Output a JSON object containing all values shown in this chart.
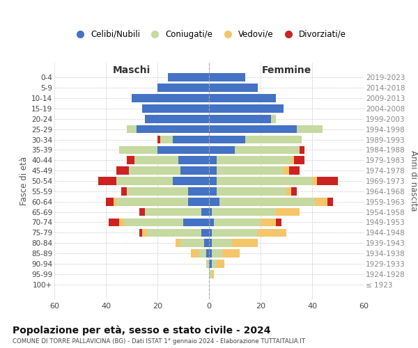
{
  "age_groups": [
    "100+",
    "95-99",
    "90-94",
    "85-89",
    "80-84",
    "75-79",
    "70-74",
    "65-69",
    "60-64",
    "55-59",
    "50-54",
    "45-49",
    "40-44",
    "35-39",
    "30-34",
    "25-29",
    "20-24",
    "15-19",
    "10-14",
    "5-9",
    "0-4"
  ],
  "birth_years": [
    "≤ 1923",
    "1924-1928",
    "1929-1933",
    "1934-1938",
    "1939-1943",
    "1944-1948",
    "1949-1953",
    "1954-1958",
    "1959-1963",
    "1964-1968",
    "1969-1973",
    "1974-1978",
    "1979-1983",
    "1984-1988",
    "1989-1993",
    "1994-1998",
    "1999-2003",
    "2004-2008",
    "2009-2013",
    "2014-2018",
    "2019-2023"
  ],
  "colors": {
    "celibe": "#4472c4",
    "coniugato": "#c5d9a0",
    "vedovo": "#f5c56a",
    "divorziato": "#cc2222"
  },
  "maschi": {
    "celibe": [
      0,
      0,
      0,
      1,
      2,
      3,
      10,
      3,
      8,
      8,
      14,
      11,
      12,
      20,
      14,
      28,
      25,
      26,
      30,
      20,
      16
    ],
    "coniugato": [
      0,
      0,
      1,
      3,
      9,
      21,
      23,
      22,
      28,
      24,
      22,
      20,
      17,
      15,
      5,
      4,
      0,
      0,
      0,
      0,
      0
    ],
    "vedovo": [
      0,
      0,
      0,
      3,
      2,
      2,
      2,
      0,
      1,
      0,
      0,
      0,
      0,
      0,
      0,
      0,
      0,
      0,
      0,
      0,
      0
    ],
    "divorziato": [
      0,
      0,
      0,
      0,
      0,
      1,
      4,
      2,
      3,
      2,
      7,
      5,
      3,
      0,
      1,
      0,
      0,
      0,
      0,
      0,
      0
    ]
  },
  "femmine": {
    "nubile": [
      0,
      0,
      1,
      1,
      1,
      1,
      2,
      1,
      4,
      3,
      3,
      3,
      3,
      10,
      14,
      34,
      24,
      29,
      26,
      19,
      14
    ],
    "coniugata": [
      0,
      1,
      2,
      4,
      8,
      18,
      18,
      25,
      37,
      27,
      37,
      26,
      29,
      25,
      22,
      10,
      2,
      0,
      0,
      0,
      0
    ],
    "vedova": [
      0,
      1,
      3,
      7,
      10,
      11,
      6,
      9,
      5,
      2,
      2,
      2,
      1,
      0,
      0,
      0,
      0,
      0,
      0,
      0,
      0
    ],
    "divorziata": [
      0,
      0,
      0,
      0,
      0,
      0,
      2,
      0,
      2,
      2,
      8,
      4,
      4,
      2,
      0,
      0,
      0,
      0,
      0,
      0,
      0
    ]
  },
  "title": "Popolazione per età, sesso e stato civile - 2024",
  "subtitle": "COMUNE DI TORRE PALLAVICINA (BG) - Dati ISTAT 1° gennaio 2024 - Elaborazione TUTTAITALIA.IT",
  "label_maschi": "Maschi",
  "label_femmine": "Femmine",
  "ylabel_left": "Fasce di età",
  "ylabel_right": "Anni di nascita",
  "xlim": 60,
  "legend_labels": [
    "Celibi/Nubili",
    "Coniugati/e",
    "Vedovi/e",
    "Divorziati/e"
  ]
}
